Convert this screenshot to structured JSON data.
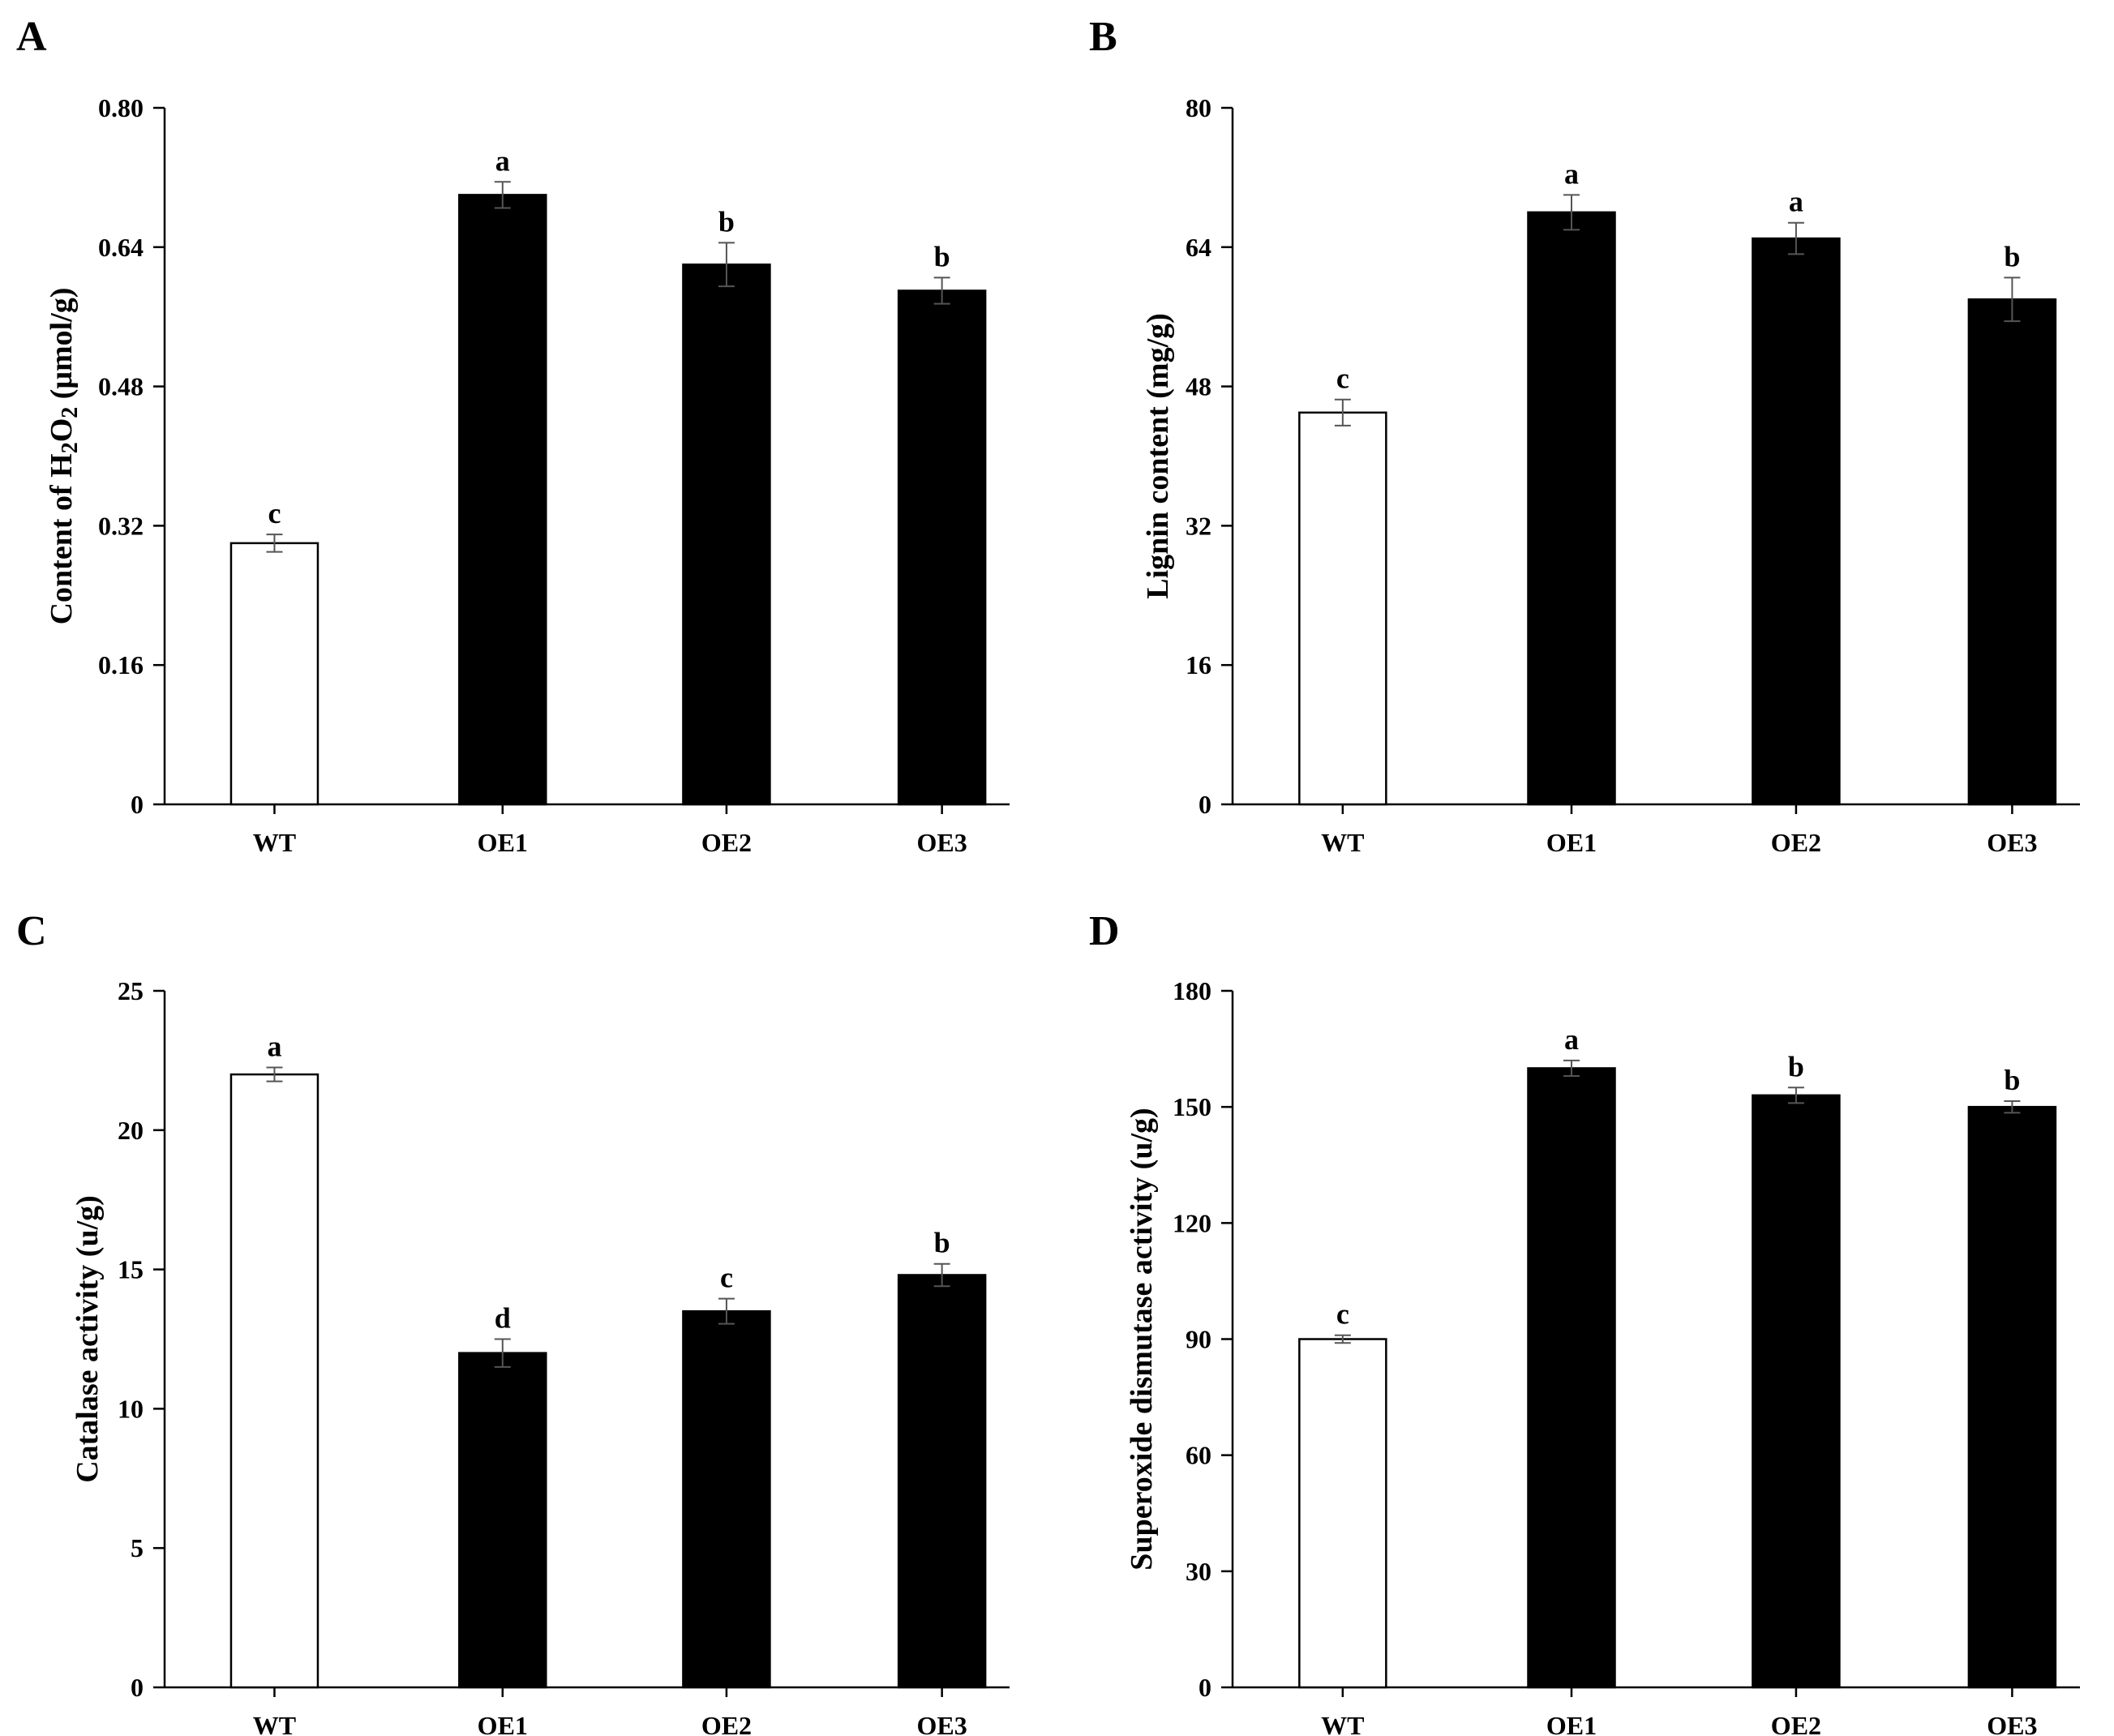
{
  "chart_data": [
    {
      "panel": "A",
      "type": "bar",
      "categories": [
        "WT",
        "OE1",
        "OE2",
        "OE3"
      ],
      "values": [
        0.3,
        0.7,
        0.62,
        0.59
      ],
      "errors": [
        0.01,
        0.015,
        0.025,
        0.015
      ],
      "significance": [
        "c",
        "a",
        "b",
        "b"
      ],
      "bar_colors": [
        "#ffffff",
        "#000000",
        "#000000",
        "#000000"
      ],
      "ylabel": "Content of H2O2 (μmol/g)",
      "ylabel_parts": {
        "pre": "Content of H",
        "sub1": "2",
        "mid": "O",
        "sub2": "2",
        "post": " (μmol/g)"
      },
      "ylim": [
        0,
        0.8
      ],
      "yticks": [
        0,
        0.16,
        0.32,
        0.48,
        0.64,
        0.8
      ],
      "ytick_labels": [
        "0",
        "0.16",
        "0.32",
        "0.48",
        "0.64",
        "0.80"
      ]
    },
    {
      "panel": "B",
      "type": "bar",
      "categories": [
        "WT",
        "OE1",
        "OE2",
        "OE3"
      ],
      "values": [
        45,
        68,
        65,
        58
      ],
      "errors": [
        1.5,
        2.0,
        1.8,
        2.5
      ],
      "significance": [
        "c",
        "a",
        "a",
        "b"
      ],
      "bar_colors": [
        "#ffffff",
        "#000000",
        "#000000",
        "#000000"
      ],
      "ylabel": "Lignin content (mg/g)",
      "ylim": [
        0,
        80
      ],
      "yticks": [
        0,
        16,
        32,
        48,
        64,
        80
      ],
      "ytick_labels": [
        "0",
        "16",
        "32",
        "48",
        "64",
        "80"
      ]
    },
    {
      "panel": "C",
      "type": "bar",
      "categories": [
        "WT",
        "OE1",
        "OE2",
        "OE3"
      ],
      "values": [
        22,
        12,
        13.5,
        14.8
      ],
      "errors": [
        0.25,
        0.5,
        0.45,
        0.4
      ],
      "significance": [
        "a",
        "d",
        "c",
        "b"
      ],
      "bar_colors": [
        "#ffffff",
        "#000000",
        "#000000",
        "#000000"
      ],
      "ylabel": "Catalase activity (u/g)",
      "ylim": [
        0,
        25
      ],
      "yticks": [
        0,
        5,
        10,
        15,
        20,
        25
      ],
      "ytick_labels": [
        "0",
        "5",
        "10",
        "15",
        "20",
        "25"
      ]
    },
    {
      "panel": "D",
      "type": "bar",
      "categories": [
        "WT",
        "OE1",
        "OE2",
        "OE3"
      ],
      "values": [
        90,
        160,
        153,
        150
      ],
      "errors": [
        1.0,
        2.0,
        2.0,
        1.5
      ],
      "significance": [
        "c",
        "a",
        "b",
        "b"
      ],
      "bar_colors": [
        "#ffffff",
        "#000000",
        "#000000",
        "#000000"
      ],
      "ylabel": "Superoxide dismutase activity (u/g)",
      "ylim": [
        0,
        180
      ],
      "yticks": [
        0,
        30,
        60,
        90,
        120,
        150,
        180
      ],
      "ytick_labels": [
        "0",
        "30",
        "60",
        "90",
        "120",
        "150",
        "180"
      ]
    }
  ]
}
